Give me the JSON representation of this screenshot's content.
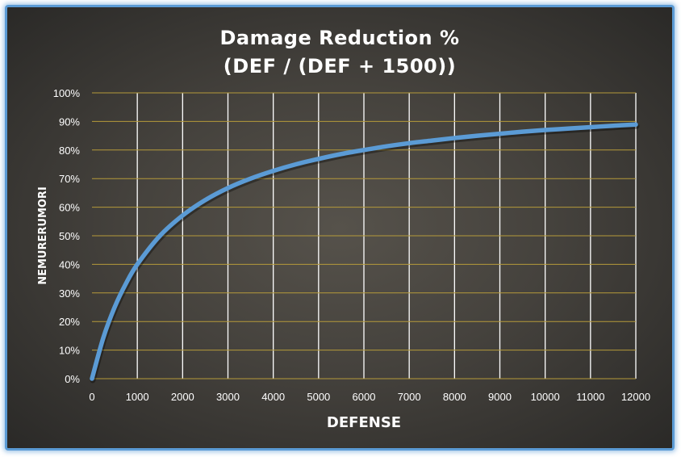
{
  "chart_data": {
    "type": "line",
    "title": "Damage Reduction %",
    "subtitle": "(DEF / (DEF + 1500))",
    "xlabel": "DEFENSE",
    "ylabel": "NEMURERUMORI",
    "xlim": [
      0,
      12000
    ],
    "ylim": [
      0,
      100
    ],
    "x_ticks": [
      "0",
      "1000",
      "2000",
      "3000",
      "4000",
      "5000",
      "6000",
      "7000",
      "8000",
      "9000",
      "10000",
      "11000",
      "12000"
    ],
    "y_ticks": [
      "0%",
      "10%",
      "20%",
      "30%",
      "40%",
      "50%",
      "60%",
      "70%",
      "80%",
      "90%",
      "100%"
    ],
    "grid": true,
    "legend": "none",
    "series": [
      {
        "color": "#5b9bd5",
        "x": [
          0,
          250,
          500,
          750,
          1000,
          1500,
          2000,
          2500,
          3000,
          3500,
          4000,
          4500,
          5000,
          5500,
          6000,
          6500,
          7000,
          7500,
          8000,
          8500,
          9000,
          9500,
          10000,
          10500,
          11000,
          11500,
          12000
        ],
        "y": [
          0,
          14.3,
          25.0,
          33.3,
          40.0,
          50.0,
          57.1,
          62.5,
          66.7,
          70.0,
          72.7,
          75.0,
          76.9,
          78.6,
          80.0,
          81.3,
          82.4,
          83.3,
          84.2,
          85.0,
          85.7,
          86.4,
          87.0,
          87.5,
          88.0,
          88.5,
          88.9
        ]
      }
    ]
  }
}
